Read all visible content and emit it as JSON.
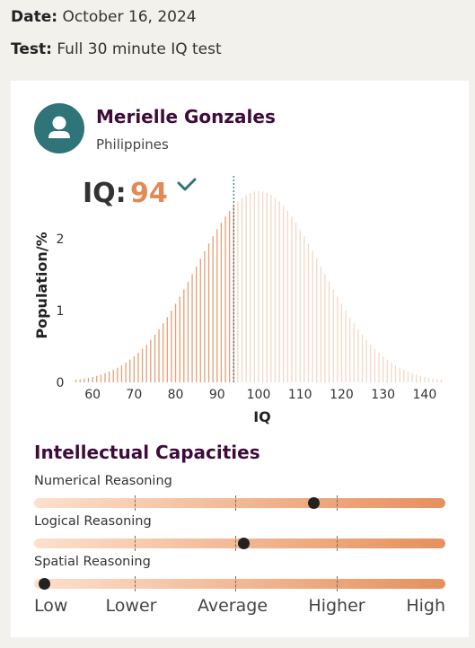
{
  "meta": {
    "date_label": "Date:",
    "date_value": "October 16, 2024",
    "test_label": "Test:",
    "test_value": "Full 30 minute IQ test"
  },
  "user": {
    "name": "Merielle Gonzales",
    "country": "Philippines",
    "avatar_icon": "user-icon"
  },
  "result": {
    "iq_label": "IQ:",
    "iq_value": "94",
    "check_icon": "check-icon"
  },
  "chart_data": {
    "type": "bar",
    "xlabel": "IQ",
    "ylabel": "Population/%",
    "x_ticks": [
      60,
      70,
      80,
      90,
      100,
      110,
      120,
      130,
      140
    ],
    "y_ticks": [
      0,
      1,
      2
    ],
    "xlim": [
      55,
      145
    ],
    "ylim": [
      0,
      2.66
    ],
    "distribution": {
      "mean": 100,
      "sd": 15,
      "x_step": 1
    },
    "marker_x": 94,
    "colors": {
      "below_marker": "#e4a075",
      "above_marker": "#f3d7c3",
      "marker": "#2e7478"
    }
  },
  "capacities": {
    "title": "Intellectual Capacities",
    "items": [
      {
        "label": "Numerical Reasoning",
        "score": 0.68
      },
      {
        "label": "Logical Reasoning",
        "score": 0.51
      },
      {
        "label": "Spatial Reasoning",
        "score": 0.025
      }
    ],
    "scale": [
      "Low",
      "Lower",
      "Average",
      "Higher",
      "High"
    ]
  }
}
